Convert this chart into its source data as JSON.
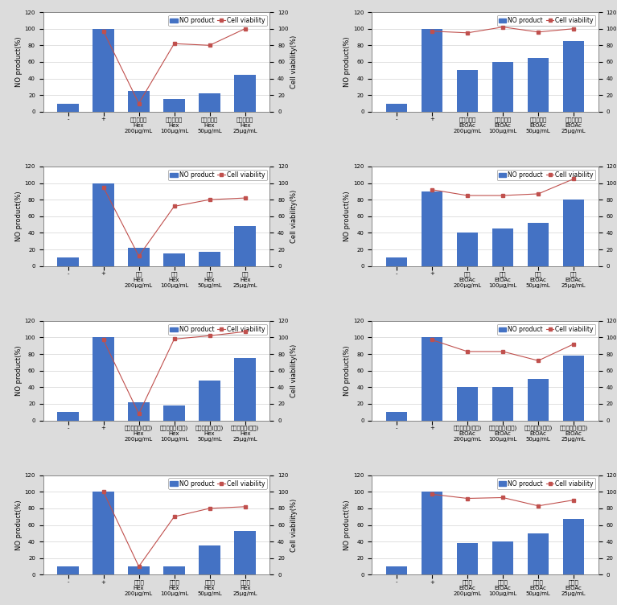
{
  "subplots": [
    {
      "row": 0,
      "col": 0,
      "bar_values": [
        10,
        100,
        25,
        15,
        22,
        44
      ],
      "line_values": [
        null,
        97,
        10,
        82,
        80,
        100
      ],
      "xlabels": [
        "-",
        "+",
        "삼양이를근\nHex\n200μg/mL",
        "삼양이를근\nHex\n100μg/mL",
        "삼양이를근\nHex\n50μg/mL",
        "삼양이를근\nHex\n25μg/mL"
      ],
      "ylabel_left": "NO product(%)",
      "ylabel_right": "Cell viability(%)"
    },
    {
      "row": 0,
      "col": 1,
      "bar_values": [
        10,
        100,
        50,
        60,
        65,
        85
      ],
      "line_values": [
        null,
        97,
        95,
        102,
        96,
        100
      ],
      "xlabels": [
        "-",
        "+",
        "삼양이를근\nEtOAc\n200μg/mL",
        "삼양이를근\nEtOAc\n100μg/mL",
        "삼양이를근\nEtOAc\n50μg/mL",
        "삼양이를근\nEtOAc\n25μg/mL"
      ],
      "ylabel_left": "NO product(%)",
      "ylabel_right": "Cell viability(%)"
    },
    {
      "row": 1,
      "col": 0,
      "bar_values": [
        10,
        100,
        22,
        15,
        17,
        48
      ],
      "line_values": [
        null,
        95,
        12,
        72,
        80,
        82
      ],
      "xlabels": [
        "-",
        "+",
        "포도\nHex\n200μg/mL",
        "포도\nHex\n100μg/mL",
        "포도\nHex\n50μg/mL",
        "포도\nHex\n25μg/mL"
      ],
      "ylabel_left": "NO product(%)",
      "ylabel_right": "Cell viability(%)"
    },
    {
      "row": 1,
      "col": 1,
      "bar_values": [
        10,
        90,
        40,
        45,
        52,
        80
      ],
      "line_values": [
        null,
        92,
        85,
        85,
        87,
        105
      ],
      "xlabels": [
        "-",
        "+",
        "포도\nEtOAc\n200μg/mL",
        "포도\nEtOAc\n100μg/mL",
        "포도\nEtOAc\n50μg/mL",
        "포도\nEtOAc\n25μg/mL"
      ],
      "ylabel_left": "NO product(%)",
      "ylabel_right": "Cell viability(%)"
    },
    {
      "row": 2,
      "col": 0,
      "bar_values": [
        10,
        100,
        22,
        18,
        48,
        75
      ],
      "line_values": [
        null,
        97,
        8,
        98,
        102,
        107
      ],
      "xlabels": [
        "-",
        "+",
        "영가시나무(가지)\nHex\n200μg/mL",
        "영가시나무(가지)\nHex\n100μg/mL",
        "영가시나무(가지)\nHex\n50μg/mL",
        "영가시나무(가지)\nHex\n25μg/mL"
      ],
      "ylabel_left": "NO product(%)",
      "ylabel_right": "Cell viability(%)"
    },
    {
      "row": 2,
      "col": 1,
      "bar_values": [
        10,
        100,
        40,
        40,
        50,
        78
      ],
      "line_values": [
        null,
        97,
        83,
        83,
        72,
        92
      ],
      "xlabels": [
        "-",
        "+",
        "영가시나무(가지)\nEtOAc\n200μg/mL",
        "영가시나무(가지)\nEtOAc\n100μg/mL",
        "영가시나무(가지)\nEtOAc\n50μg/mL",
        "영가시나무(가지)\nEtOAc\n25μg/mL"
      ],
      "ylabel_left": "NO product(%)",
      "ylabel_right": "Cell viability(%)"
    },
    {
      "row": 3,
      "col": 0,
      "bar_values": [
        10,
        100,
        10,
        10,
        35,
        53
      ],
      "line_values": [
        null,
        100,
        10,
        70,
        80,
        82
      ],
      "xlabels": [
        "-",
        "+",
        "여유근\nHex\n200μg/mL",
        "여유근\nHex\n100μg/mL",
        "여유근\nHex\n50μg/mL",
        "여유근\nHex\n25μg/mL"
      ],
      "ylabel_left": "NO product(%)",
      "ylabel_right": "Cell viability(%)"
    },
    {
      "row": 3,
      "col": 1,
      "bar_values": [
        10,
        100,
        38,
        40,
        50,
        67
      ],
      "line_values": [
        null,
        97,
        92,
        93,
        83,
        90
      ],
      "xlabels": [
        "-",
        "+",
        "여유근\nEtOAc\n200μg/mL",
        "여유근\nEtOAc\n100μg/mL",
        "여유근\nEtOAc\n50μg/mL",
        "여유근\nEtOAc\n25μg/mL"
      ],
      "ylabel_left": "NO product(%)",
      "ylabel_right": "Cell viability(%)"
    }
  ],
  "bar_color": "#4472C4",
  "line_color": "#C0504D",
  "line_marker": "s",
  "ylim": [
    0,
    120
  ],
  "yticks": [
    0,
    20,
    40,
    60,
    80,
    100,
    120
  ],
  "legend_labels": [
    "NO product",
    "Cell viability"
  ],
  "tick_fontsize": 5,
  "label_fontsize": 6,
  "legend_fontsize": 5.5,
  "figure_facecolor": "#DCDCDC",
  "panel_facecolor": "#FFFFFF"
}
